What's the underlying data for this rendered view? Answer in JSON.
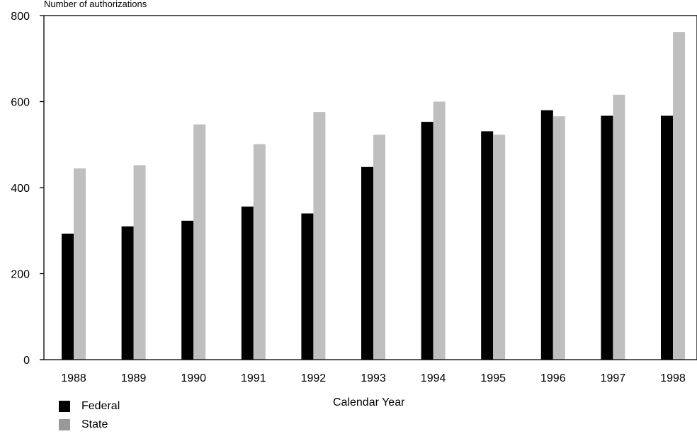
{
  "colors": {
    "federal": "#000000",
    "state": "#bfbfbf",
    "state_legend": "#999999",
    "axis": "#000000"
  },
  "chart_data": {
    "type": "bar",
    "title": "",
    "ylabel": "Number of authorizations",
    "xlabel": "Calendar Year",
    "categories": [
      "1988",
      "1989",
      "1990",
      "1991",
      "1992",
      "1993",
      "1994",
      "1995",
      "1996",
      "1997",
      "1998"
    ],
    "ylim": [
      0,
      800
    ],
    "yticks": [
      "0",
      "200",
      "400",
      "600",
      "800"
    ],
    "grid": false,
    "legend_position": "bottom-left",
    "series": [
      {
        "name": "Federal",
        "values": [
          293,
          310,
          323,
          356,
          340,
          448,
          553,
          531,
          580,
          567,
          567
        ]
      },
      {
        "name": "State",
        "values": [
          445,
          452,
          547,
          501,
          576,
          523,
          600,
          523,
          566,
          616,
          762
        ]
      }
    ]
  }
}
